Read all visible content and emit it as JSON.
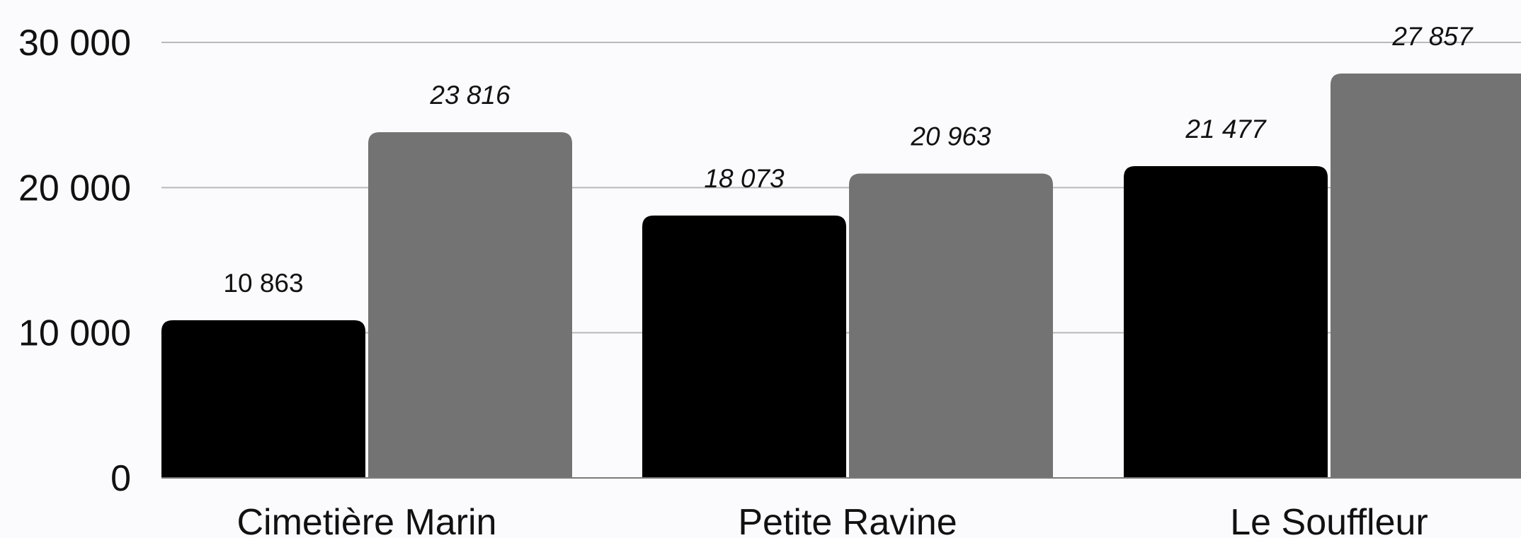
{
  "chart_data": {
    "type": "bar",
    "categories": [
      "Cimetière Marin",
      "Petite Ravine",
      "Le Souffleur"
    ],
    "series": [
      {
        "values": [
          10863,
          18073,
          21477
        ],
        "color": "#000000",
        "value_labels": [
          "10 863",
          "18 073",
          "21 477"
        ],
        "label_style": [
          "normal",
          "italic",
          "italic"
        ]
      },
      {
        "values": [
          23816,
          20963,
          27857
        ],
        "color": "#737373",
        "value_labels": [
          "23 816",
          "20 963",
          "27 857"
        ],
        "label_style": [
          "italic",
          "italic",
          "italic"
        ]
      }
    ],
    "ylim": [
      0,
      30000
    ],
    "yticks": [
      0,
      10000,
      20000,
      30000
    ],
    "ytick_labels": [
      "0",
      "10 000",
      "20 000",
      "30 000"
    ],
    "grid": true,
    "title": "",
    "xlabel": "",
    "ylabel": ""
  }
}
